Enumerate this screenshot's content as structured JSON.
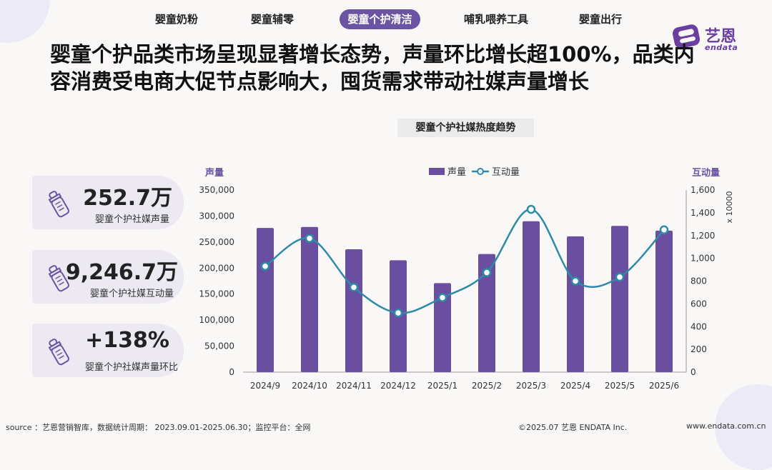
{
  "nav": {
    "tabs": [
      {
        "label": "婴童奶粉",
        "active": false
      },
      {
        "label": "婴童辅零",
        "active": false
      },
      {
        "label": "婴童个护清洁",
        "active": true
      },
      {
        "label": "哺乳喂养工具",
        "active": false
      },
      {
        "label": "婴童出行",
        "active": false
      }
    ]
  },
  "brand": {
    "name": "艺恩",
    "sub": "endata",
    "color": "#6b3fa0"
  },
  "headline": "婴童个护品类市场呈现显著增长态势，声量环比增长超100%，品类内容消费受电商大促节点影响大，囤货需求带动社媒声量增长",
  "stats": [
    {
      "value": "252.7万",
      "label": "婴童个护社媒声量",
      "icon": "baby-bottle-icon"
    },
    {
      "value": "9,246.7万",
      "label": "婴童个护社媒互动量",
      "icon": "baby-bottle-icon"
    },
    {
      "value": "+138%",
      "label": "婴童个护社媒声量环比",
      "icon": "baby-bottle-icon"
    }
  ],
  "colors": {
    "bar": "#6a4fa0",
    "line": "#2f8aa8",
    "accent": "#6b54a3"
  },
  "chart_data": {
    "type": "bar+line",
    "title": "婴童个护社媒热度趋势",
    "categories": [
      "2024/9",
      "2024/10",
      "2024/11",
      "2024/12",
      "2025/1",
      "2025/2",
      "2025/3",
      "2025/4",
      "2025/5",
      "2025/6"
    ],
    "series": [
      {
        "name": "声量",
        "type": "bar",
        "axis": "left",
        "values": [
          277000,
          279000,
          236000,
          215000,
          171000,
          227000,
          290000,
          261000,
          281000,
          272000
        ]
      },
      {
        "name": "互动量",
        "type": "line",
        "axis": "right",
        "values": [
          930,
          1175,
          745,
          520,
          655,
          875,
          1430,
          800,
          835,
          1250
        ]
      }
    ],
    "ylabel_left": "声量",
    "ylabel_right": "互动量",
    "right_unit": "x 10000",
    "ylim_left": [
      0,
      350000
    ],
    "ylim_right": [
      0,
      1600
    ],
    "yticks_left": [
      "0",
      "50,000",
      "100,000",
      "150,000",
      "200,000",
      "250,000",
      "300,000",
      "350,000"
    ],
    "yticks_right": [
      "0",
      "200",
      "400",
      "600",
      "800",
      "1,000",
      "1,200",
      "1,400",
      "1,600"
    ],
    "legend_position": "top-center",
    "grid": false
  },
  "footer": {
    "source": "source ：艺恩营销智库，数据统计周期： 2023.09.01-2025.06.30；监控平台：全网",
    "copyright": "©2025.07  艺恩 ENDATA Inc.",
    "url": "www.endata.com.cn"
  }
}
